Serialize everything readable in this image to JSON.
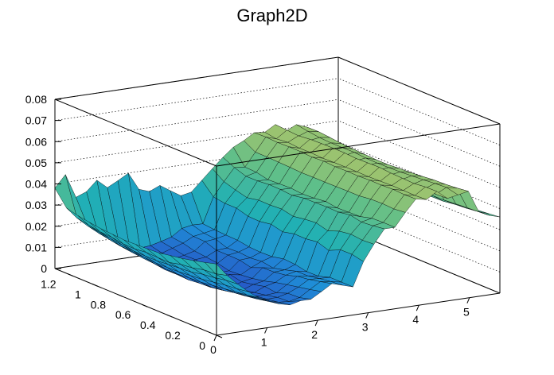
{
  "chart_data": {
    "type": "surface3d",
    "title": "Graph2D",
    "x_ticks": [
      "0",
      "1",
      "2",
      "3",
      "4",
      "5"
    ],
    "y_ticks": [
      "0",
      "0.2",
      "0.4",
      "0.6",
      "0.8",
      "1",
      "1.2"
    ],
    "z_ticks": [
      "0",
      "0.01",
      "0.02",
      "0.03",
      "0.04",
      "0.05",
      "0.06",
      "0.07",
      "0.08"
    ],
    "xlim": [
      0,
      5.6
    ],
    "ylim": [
      0,
      1.3
    ],
    "zlim": [
      0,
      0.08
    ],
    "grid": true,
    "colormap": [
      "#2a3fbf",
      "#1f8fd8",
      "#21b0b4",
      "#5fbf8a",
      "#a8c46a",
      "#e8c152",
      "#fbe340"
    ],
    "surface_rows_y": [
      0,
      0.0929,
      0.1857,
      0.2786,
      0.3714,
      0.4643,
      0.5571,
      0.65,
      0.7429,
      0.8357,
      0.9286,
      1.0214,
      1.1143,
      1.2071,
      1.3
    ],
    "surface_cols_x": [
      0,
      0.2074,
      0.4148,
      0.6222,
      0.8296,
      1.037,
      1.2444,
      1.4519,
      1.6593,
      1.8667,
      2.0741,
      2.2815,
      2.4889,
      2.6963,
      2.9037,
      3.1111,
      3.3185,
      3.5259,
      3.7333,
      3.9407,
      4.1481,
      4.3556,
      4.563,
      4.7704,
      4.9778,
      5.1852,
      5.3926,
      5.6
    ],
    "surface_z": [
      [
        0.0337,
        0.0276,
        0.0228,
        0.0185,
        0.0148,
        0.0126,
        0.0104,
        0.0092,
        0.0104,
        0.0104,
        0.0133,
        0.0163,
        0.0148,
        0.0133,
        0.0245,
        0.032,
        0.0385,
        0.0385,
        0.0448,
        0.0504,
        0.0494,
        0.0525,
        0.0485,
        0.0494,
        0.0504,
        0.0399,
        0.0375,
        0.036
      ],
      [
        0.0322,
        0.0261,
        0.0223,
        0.0176,
        0.0139,
        0.0116,
        0.0094,
        0.0082,
        0.0078,
        0.0089,
        0.012,
        0.015,
        0.0143,
        0.0133,
        0.0257,
        0.0316,
        0.0377,
        0.0385,
        0.0442,
        0.0502,
        0.0491,
        0.0524,
        0.0482,
        0.0507,
        0.0497,
        0.0396,
        0.0371,
        0.0354
      ],
      [
        0.0308,
        0.0257,
        0.0213,
        0.0171,
        0.0131,
        0.0105,
        0.0083,
        0.0074,
        0.0075,
        0.0087,
        0.0109,
        0.0138,
        0.0135,
        0.0133,
        0.0256,
        0.0322,
        0.0372,
        0.0383,
        0.0445,
        0.0505,
        0.0492,
        0.0518,
        0.0485,
        0.0503,
        0.0492,
        0.0392,
        0.0364,
        0.0349
      ],
      [
        0.0296,
        0.0244,
        0.0206,
        0.0162,
        0.0124,
        0.0097,
        0.0075,
        0.0066,
        0.0063,
        0.0067,
        0.0098,
        0.013,
        0.0125,
        0.0116,
        0.023,
        0.0314,
        0.0384,
        0.0368,
        0.0443,
        0.0502,
        0.0493,
        0.052,
        0.0484,
        0.0498,
        0.049,
        0.0387,
        0.036,
        0.0342
      ],
      [
        0.0287,
        0.0238,
        0.0194,
        0.0153,
        0.0117,
        0.0086,
        0.0068,
        0.0054,
        0.0053,
        0.0074,
        0.0086,
        0.0113,
        0.0124,
        0.0115,
        0.0248,
        0.0293,
        0.0374,
        0.0366,
        0.0436,
        0.0503,
        0.0491,
        0.0522,
        0.0483,
        0.0494,
        0.0484,
        0.0386,
        0.0352,
        0.0338
      ],
      [
        0.0277,
        0.0224,
        0.019,
        0.0148,
        0.0109,
        0.0079,
        0.0057,
        0.0044,
        0.0043,
        0.0061,
        0.007,
        0.0105,
        0.0108,
        0.0126,
        0.024,
        0.0308,
        0.0376,
        0.0364,
        0.0436,
        0.05,
        0.0489,
        0.0527,
        0.0482,
        0.049,
        0.048,
        0.0376,
        0.0351,
        0.0331
      ],
      [
        0.0274,
        0.0225,
        0.0185,
        0.0143,
        0.0107,
        0.0074,
        0.0048,
        0.0041,
        0.0035,
        0.0051,
        0.006,
        0.0103,
        0.0094,
        0.013,
        0.0241,
        0.0303,
        0.0374,
        0.0372,
        0.0435,
        0.0501,
        0.049,
        0.0525,
        0.0483,
        0.0488,
        0.0477,
        0.0374,
        0.0347,
        0.033
      ],
      [
        0.0272,
        0.0227,
        0.018,
        0.0141,
        0.0102,
        0.0068,
        0.0048,
        0.0043,
        0.0046,
        0.0063,
        0.0054,
        0.0081,
        0.0103,
        0.0118,
        0.0228,
        0.0294,
        0.0373,
        0.0365,
        0.0434,
        0.0499,
        0.049,
        0.0523,
        0.0481,
        0.0487,
        0.0473,
        0.037,
        0.0344,
        0.0325
      ],
      [
        0.027,
        0.0221,
        0.018,
        0.014,
        0.0103,
        0.0071,
        0.0051,
        0.0042,
        0.0033,
        0.0048,
        0.0051,
        0.0094,
        0.0097,
        0.0116,
        0.0241,
        0.0306,
        0.0363,
        0.0362,
        0.0434,
        0.0503,
        0.0489,
        0.0527,
        0.0481,
        0.0488,
        0.0473,
        0.0367,
        0.0343,
        0.0325
      ],
      [
        0.0274,
        0.0222,
        0.0181,
        0.0144,
        0.0106,
        0.007,
        0.0057,
        0.0037,
        0.0045,
        0.0044,
        0.0064,
        0.0095,
        0.0102,
        0.0119,
        0.0232,
        0.0302,
        0.0368,
        0.0367,
        0.0433,
        0.0499,
        0.0487,
        0.0527,
        0.0482,
        0.0493,
        0.0476,
        0.0373,
        0.0345,
        0.0323
      ],
      [
        0.0278,
        0.0231,
        0.0187,
        0.0148,
        0.011,
        0.0078,
        0.0059,
        0.0046,
        0.0051,
        0.0066,
        0.0071,
        0.0095,
        0.0099,
        0.0128,
        0.0234,
        0.0303,
        0.0369,
        0.0365,
        0.0436,
        0.0503,
        0.049,
        0.0526,
        0.0483,
        0.0492,
        0.0479,
        0.0377,
        0.0345,
        0.0329
      ],
      [
        0.0286,
        0.0234,
        0.0195,
        0.0151,
        0.0116,
        0.0089,
        0.0069,
        0.0052,
        0.0054,
        0.0064,
        0.0077,
        0.0114,
        0.0119,
        0.013,
        0.025,
        0.0292,
        0.0364,
        0.0362,
        0.0438,
        0.0503,
        0.0489,
        0.0524,
        0.0484,
        0.0492,
        0.0482,
        0.0381,
        0.0352,
        0.0339
      ],
      [
        0.0295,
        0.0244,
        0.0202,
        0.016,
        0.0123,
        0.0095,
        0.0071,
        0.0057,
        0.0059,
        0.0075,
        0.0091,
        0.0116,
        0.0124,
        0.0133,
        0.025,
        0.0306,
        0.0363,
        0.0375,
        0.044,
        0.0501,
        0.0494,
        0.0518,
        0.0487,
        0.0495,
        0.0488,
        0.0387,
        0.0358,
        0.0341
      ],
      [
        0.0309,
        0.0254,
        0.021,
        0.017,
        0.0133,
        0.0108,
        0.0083,
        0.0067,
        0.0072,
        0.0084,
        0.0098,
        0.0131,
        0.014,
        0.0138,
        0.0258,
        0.0323,
        0.0382,
        0.0377,
        0.044,
        0.0504,
        0.0488,
        0.0522,
        0.0483,
        0.0502,
        0.0493,
        0.0394,
        0.0362,
        0.0345
      ],
      [
        0.038,
        0.0437,
        0.0322,
        0.0341,
        0.0388,
        0.0346,
        0.0371,
        0.0399,
        0.0316,
        0.0298,
        0.0319,
        0.0287,
        0.0256,
        0.0266,
        0.0314,
        0.0362,
        0.0408,
        0.0448,
        0.0472,
        0.0502,
        0.0497,
        0.0526,
        0.0487,
        0.0511,
        0.0492,
        0.0403,
        0.0428,
        0.0391
      ]
    ]
  }
}
